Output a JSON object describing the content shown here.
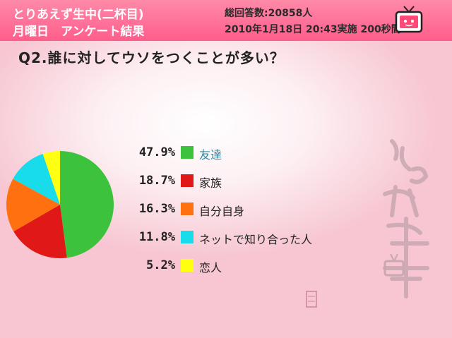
{
  "header": {
    "line1": "とりあえず生中(二杯目)",
    "line2": "月曜日　アンケート結果",
    "stats": "総回答数:20858人",
    "date": "2010年1月18日 20:43実施 200秒間"
  },
  "question": "Q2.誰に対してウソをつくことが多い？",
  "chart_data": {
    "type": "pie",
    "slices": [
      {
        "label": "友達",
        "value": 47.9,
        "pct_text": "47.9%",
        "color": "#3cc23c"
      },
      {
        "label": "家族",
        "value": 18.7,
        "pct_text": "18.7%",
        "color": "#e01818"
      },
      {
        "label": "自分自身",
        "value": 16.3,
        "pct_text": "16.3%",
        "color": "#ff7010"
      },
      {
        "label": "ネットで知り合った人",
        "value": 11.8,
        "pct_text": "11.8%",
        "color": "#18dcea"
      },
      {
        "label": "恋人",
        "value": 5.2,
        "pct_text": "5.2%",
        "color": "#ffff10"
      }
    ]
  },
  "icons": {
    "tv": "tv-mascot-icon",
    "deco": "tori-aezu-namachu-logo",
    "stamp": "seal-stamp-icon"
  },
  "colors": {
    "header_pink": "#ff6e94",
    "background_pink": "#f7c6d2"
  }
}
